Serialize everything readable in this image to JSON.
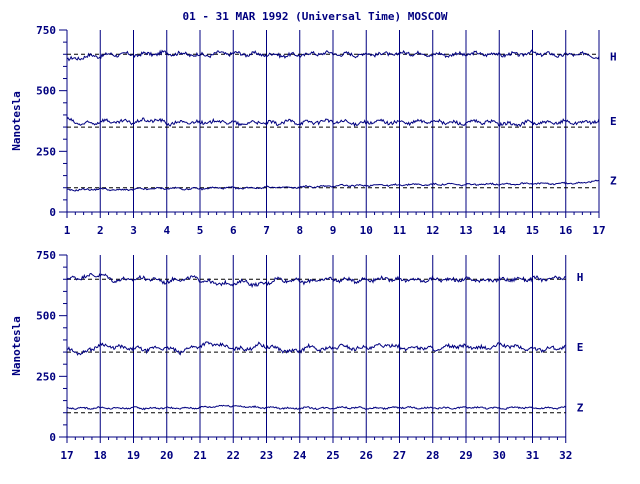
{
  "chart_data": {
    "type": "line",
    "title": "01 - 31 MAR 1992 (Universal Time) MOSCOW",
    "ylabel": "Nanotesla",
    "color": "#000080",
    "panels": [
      {
        "x_ticks": [
          "1",
          "2",
          "3",
          "4",
          "5",
          "6",
          "7",
          "8",
          "9",
          "10",
          "11",
          "12",
          "13",
          "14",
          "15",
          "16",
          "17"
        ],
        "ylim": [
          0,
          750
        ],
        "y_ticks": [
          "0",
          "250",
          "500",
          "750"
        ],
        "baselines": [
          650,
          350,
          100
        ],
        "series": [
          {
            "name": "H",
            "values": [
              625,
              640,
              645,
              650,
              648,
              652,
              655,
              650,
              645,
              655,
              652,
              650,
              648,
              645,
              650,
              655,
              650,
              648,
              652,
              650,
              655,
              650,
              648,
              650,
              652,
              650,
              648,
              655,
              650,
              645,
              652,
              640
            ]
          },
          {
            "name": "E",
            "values": [
              380,
              360,
              375,
              370,
              372,
              380,
              365,
              370,
              368,
              375,
              362,
              370,
              365,
              372,
              368,
              375,
              370,
              365,
              372,
              370,
              368,
              375,
              370,
              365,
              372,
              368,
              360,
              370,
              365,
              372,
              368,
              375
            ]
          },
          {
            "name": "Z",
            "values": [
              90,
              92,
              95,
              90,
              94,
              96,
              98,
              95,
              97,
              100,
              98,
              100,
              102,
              100,
              104,
              105,
              110,
              108,
              112,
              110,
              114,
              112,
              115,
              112,
              114,
              116,
              115,
              118,
              116,
              118,
              120,
              130
            ]
          }
        ]
      },
      {
        "x_ticks": [
          "17",
          "18",
          "19",
          "20",
          "21",
          "22",
          "23",
          "24",
          "25",
          "26",
          "27",
          "28",
          "29",
          "30",
          "31",
          "32"
        ],
        "ylim": [
          0,
          750
        ],
        "y_ticks": [
          "0",
          "250",
          "500",
          "750"
        ],
        "baselines": [
          650,
          350,
          100
        ],
        "series": [
          {
            "name": "H",
            "values": [
              650,
              660,
              670,
              645,
              650,
              655,
              640,
              650,
              655,
              635,
              630,
              640,
              625,
              650,
              645,
              640,
              650,
              648,
              645,
              650,
              652,
              648,
              645,
              650,
              648,
              650,
              645,
              648,
              650,
              652,
              648,
              660
            ]
          },
          {
            "name": "E",
            "values": [
              360,
              345,
              380,
              370,
              365,
              360,
              370,
              350,
              375,
              385,
              370,
              360,
              380,
              365,
              350,
              370,
              360,
              375,
              365,
              370,
              380,
              365,
              370,
              360,
              375,
              370,
              365,
              380,
              370,
              360,
              365,
              370
            ]
          },
          {
            "name": "Z",
            "values": [
              120,
              118,
              120,
              118,
              120,
              118,
              120,
              118,
              120,
              125,
              130,
              125,
              122,
              120,
              118,
              120,
              118,
              122,
              120,
              118,
              120,
              122,
              118,
              120,
              118,
              122,
              120,
              118,
              122,
              120,
              118,
              122
            ]
          }
        ]
      }
    ]
  }
}
